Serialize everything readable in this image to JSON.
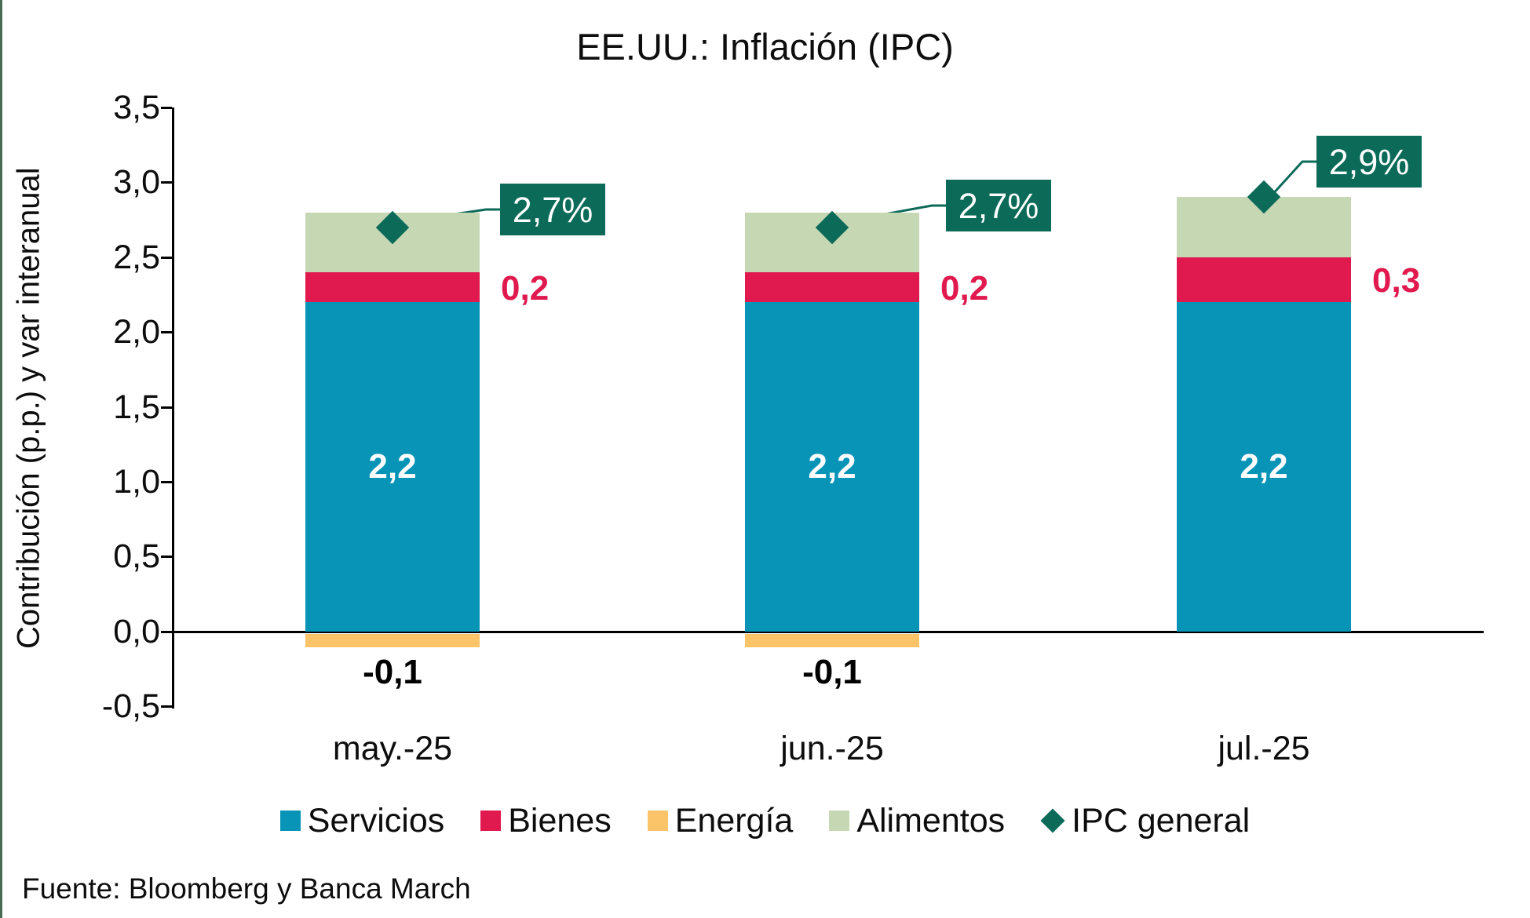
{
  "frame": {
    "accent_border_color": "#4A6B52",
    "background_color": "#FFFFFF"
  },
  "chart_data": {
    "type": "bar",
    "stacked": true,
    "title": "EE.UU.: Inflación (IPC)",
    "ylabel": "Contribución (p.p.) y var interanual",
    "xlabel": "",
    "ylim": [
      -0.5,
      3.5
    ],
    "ytick_step": 0.5,
    "ytick_labels": [
      "3,5",
      "3,0",
      "2,5",
      "2,0",
      "1,5",
      "1,0",
      "0,5",
      "0,0",
      "-0,5"
    ],
    "grid": false,
    "legend_position": "bottom",
    "categories": [
      "may.-25",
      "jun.-25",
      "jul.-25"
    ],
    "series": [
      {
        "name": "Servicios",
        "color": "#0894B6",
        "values": [
          2.2,
          2.2,
          2.2
        ],
        "labels": [
          "2,2",
          "2,2",
          "2,2"
        ],
        "label_placement": "inside",
        "label_color": "#FFFFFF"
      },
      {
        "name": "Bienes",
        "color": "#E0194E",
        "values": [
          0.2,
          0.2,
          0.3
        ],
        "labels": [
          "0,2",
          "0,2",
          "0,3"
        ],
        "label_placement": "right",
        "label_color": "#E0194E"
      },
      {
        "name": "Energía",
        "color": "#FBC469",
        "values": [
          -0.1,
          -0.1,
          0.0
        ],
        "labels": [
          "-0,1",
          "-0,1",
          ""
        ],
        "label_placement": "below",
        "label_color": "#000000"
      },
      {
        "name": "Alimentos",
        "color": "#C6D7B4",
        "values": [
          0.4,
          0.4,
          0.4
        ],
        "labels": [
          "",
          "",
          ""
        ],
        "label_placement": "none",
        "label_color": "#000000"
      }
    ],
    "markers": {
      "name": "IPC general",
      "color": "#0C6A59",
      "values": [
        2.7,
        2.7,
        2.9
      ],
      "labels": [
        "2,7%",
        "2,7%",
        "2,9%"
      ]
    }
  },
  "footer": {
    "source": "Fuente: Bloomberg y Banca March"
  }
}
